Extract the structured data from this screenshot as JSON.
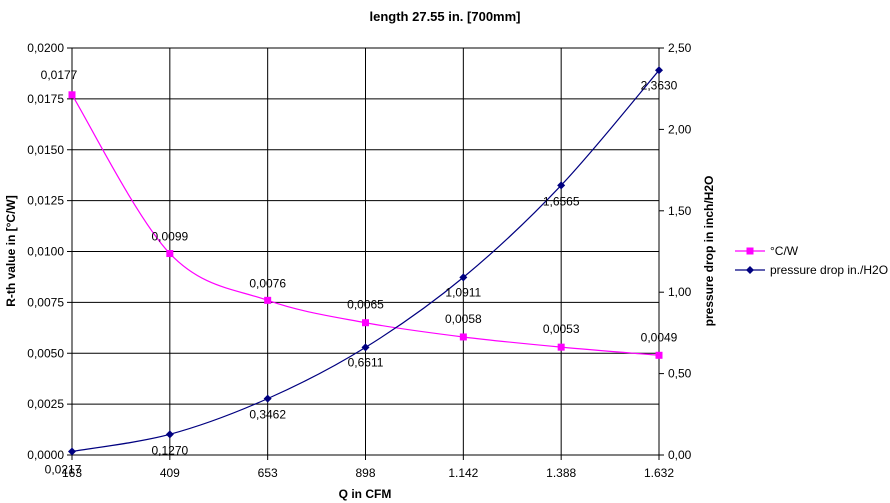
{
  "chart_data": {
    "type": "line",
    "title": "length 27.55 in. [700mm]",
    "xlabel": "Q in CFM",
    "ylabel_left": "R-th value in [°C/W]",
    "ylabel_right": "pressure drop in inch/H2O",
    "categories": [
      "163",
      "409",
      "653",
      "898",
      "1.142",
      "1.388",
      "1.632"
    ],
    "y_left": {
      "range": [
        0,
        0.02
      ],
      "ticks": [
        0,
        0.0025,
        0.005,
        0.0075,
        0.01,
        0.0125,
        0.015,
        0.0175,
        0.02
      ],
      "tick_labels": [
        "0,0000",
        "0,0025",
        "0,0050",
        "0,0075",
        "0,0100",
        "0,0125",
        "0,0150",
        "0,0175",
        "0,0200"
      ]
    },
    "y_right": {
      "range": [
        0,
        2.5
      ],
      "ticks": [
        0,
        0.5,
        1,
        1.5,
        2,
        2.5
      ],
      "tick_labels": [
        "0,00",
        "0,50",
        "1,00",
        "1,50",
        "2,00",
        "2,50"
      ]
    },
    "grid": true,
    "legend_position": "right",
    "series": [
      {
        "name": "°C/W",
        "axis": "left",
        "color": "#ff00ff",
        "marker": "square",
        "values": [
          0.0177,
          0.0099,
          0.0076,
          0.0065,
          0.0058,
          0.0053,
          0.0049
        ],
        "labels": [
          "0,0177",
          "0,0099",
          "0,0076",
          "0,0065",
          "0,0058",
          "0,0053",
          "0,0049"
        ]
      },
      {
        "name": "pressure drop in./H2O",
        "axis": "right",
        "color": "#000080",
        "marker": "diamond",
        "values": [
          0.0217,
          0.127,
          0.3462,
          0.6611,
          1.0911,
          1.6565,
          2.363
        ],
        "labels": [
          "0,0217",
          "0,1270",
          "0,3462",
          "0,6611",
          "1,0911",
          "1,6565",
          "2,3630"
        ]
      }
    ]
  }
}
